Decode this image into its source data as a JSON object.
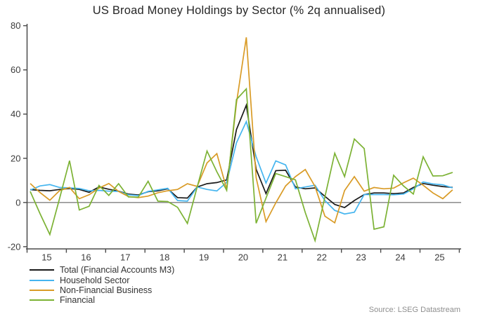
{
  "chart_data": {
    "type": "line",
    "title": "US Broad Money Holdings by Sector (% 2q annualised)",
    "source": "Source: LSEG Datastream",
    "x_start": 2015.08,
    "x_step": 0.25,
    "x_axis": {
      "tick_years": [
        15,
        16,
        17,
        18,
        19,
        20,
        21,
        22,
        23,
        24,
        25,
        26
      ],
      "tick_labels": [
        "15",
        "16",
        "17",
        "18",
        "19",
        "20",
        "21",
        "22",
        "23",
        "24",
        "25"
      ]
    },
    "y_axis": {
      "ticks": [
        80,
        60,
        40,
        20,
        0,
        -20
      ],
      "min": -21,
      "max": 80
    },
    "zero_line": true,
    "grid": false,
    "legend_position": "bottom-left",
    "colors": {
      "axis": "#4a4a4a",
      "zero_line": "#808080",
      "tick_label": "#3c3c3c"
    },
    "series": [
      {
        "name": "Total (Financial Accounts M3)",
        "color": "#1a1a1a",
        "values": [
          5.8,
          5.5,
          5.3,
          5.9,
          6.3,
          5.9,
          4.6,
          7.0,
          6.0,
          5.1,
          3.8,
          3.4,
          4.9,
          5.3,
          6.2,
          2.2,
          2.0,
          7.0,
          8.5,
          9.0,
          10.2,
          33,
          44,
          15,
          4.0,
          14.4,
          14.6,
          7.0,
          6.2,
          6.6,
          2.8,
          -0.9,
          -2.3,
          0.9,
          3.6,
          4.3,
          4.3,
          4.0,
          4.3,
          6.8,
          8.6,
          7.8,
          7.2,
          6.8
        ]
      },
      {
        "name": "Household Sector",
        "color": "#45b5ef",
        "values": [
          5.6,
          7.5,
          8.1,
          6.8,
          6.6,
          6.3,
          5.3,
          5.5,
          5.1,
          5.0,
          3.5,
          3.1,
          5.0,
          5.7,
          6.4,
          0.9,
          0.6,
          7.0,
          5.9,
          5.2,
          9.1,
          27,
          36.6,
          20.7,
          8.8,
          18.8,
          17.0,
          6.2,
          7.0,
          7.8,
          0.9,
          -3.6,
          -5.2,
          -4.4,
          3.6,
          3.6,
          3.6,
          3.5,
          3.8,
          6.2,
          9.3,
          8.4,
          8.0,
          6.6
        ]
      },
      {
        "name": "Non-Financial Business",
        "color": "#d99b26",
        "values": [
          8.6,
          4.5,
          1.0,
          5.4,
          6.8,
          1.7,
          3.5,
          6.5,
          8.6,
          5.0,
          2.7,
          2.2,
          2.9,
          4.4,
          5.3,
          5.9,
          8.5,
          7.3,
          17.9,
          22.1,
          6.0,
          45,
          74.7,
          11.2,
          -8.7,
          -0.2,
          7.5,
          11.7,
          14.9,
          7.2,
          -6.2,
          -9.2,
          5.4,
          11.7,
          5.1,
          6.8,
          6.2,
          6.5,
          8.9,
          11.0,
          7.8,
          4.3,
          1.7,
          5.7
        ]
      },
      {
        "name": "Financial",
        "color": "#7cb234",
        "values": [
          5,
          -5,
          -14.5,
          2,
          18.9,
          -3.4,
          -1.7,
          7.7,
          3.2,
          8.5,
          2.5,
          2.4,
          9.6,
          0.6,
          0.4,
          -2.2,
          -9.5,
          7,
          23.3,
          13.9,
          5.5,
          46.6,
          51.4,
          -9.4,
          2,
          13.1,
          11.7,
          10.2,
          -4.6,
          -17.3,
          2.5,
          22.3,
          11.7,
          28.7,
          24.4,
          -12.1,
          -11,
          12.3,
          7.5,
          3.8,
          20.7,
          12,
          12.1,
          13.6
        ]
      }
    ]
  }
}
